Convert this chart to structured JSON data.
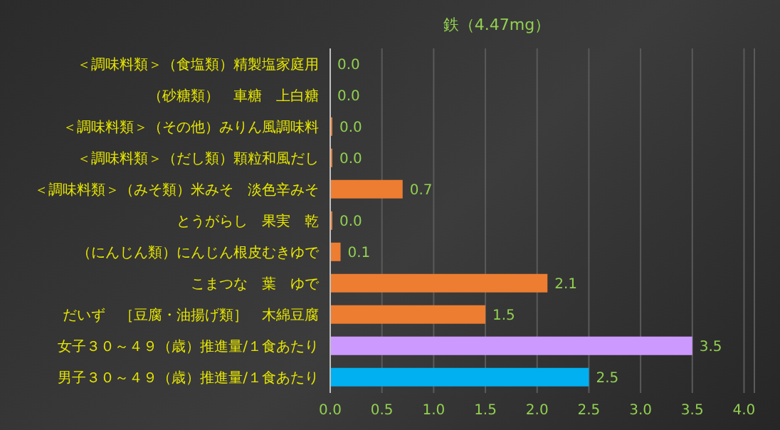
{
  "chart_data": {
    "type": "bar",
    "orientation": "horizontal",
    "title": "鉄（4.47mg）",
    "categories": [
      "＜調味料類＞（食塩類）精製塩家庭用",
      "（砂糖類）　車糖　上白糖",
      "＜調味料類＞（その他）みりん風調味料",
      "＜調味料類＞（だし類）顆粒和風だし",
      "＜調味料類＞（みそ類）米みそ　淡色辛みそ",
      "とうがらし　果実　乾",
      "（にんじん類）にんじん根皮むきゆで",
      "こまつな　葉　ゆで",
      "だいず　［豆腐・油揚げ類］　木綿豆腐",
      "女子３０～４９（歳）推進量/１食あたり",
      "男子３０～４９（歳）推進量/１食あたり"
    ],
    "values": [
      0,
      0,
      0.02,
      0.02,
      0.7,
      0.02,
      0.1,
      2.1,
      1.5,
      3.5,
      2.5
    ],
    "value_labels": [
      "0.0",
      "0.0",
      "0.0",
      "0.0",
      "0.7",
      "0.0",
      "0.1",
      "2.1",
      "1.5",
      "3.5",
      "2.5"
    ],
    "colors": [
      "#ed7d31",
      "#ed7d31",
      "#ed7d31",
      "#ed7d31",
      "#ed7d31",
      "#ed7d31",
      "#ed7d31",
      "#ed7d31",
      "#ed7d31",
      "#cc99ff",
      "#00b0f0"
    ],
    "xlim": [
      0,
      4.1
    ],
    "xticks": [
      {
        "value": 0,
        "label": "0.0"
      },
      {
        "value": 0.5,
        "label": "0.5"
      },
      {
        "value": 1,
        "label": "1.0"
      },
      {
        "value": 1.5,
        "label": "1.5"
      },
      {
        "value": 2,
        "label": "2.0"
      },
      {
        "value": 2.5,
        "label": "2.5"
      },
      {
        "value": 3,
        "label": "3.0"
      },
      {
        "value": 3.5,
        "label": "3.5"
      },
      {
        "value": 4,
        "label": "4.0"
      }
    ],
    "grid": "x",
    "legend": false
  }
}
